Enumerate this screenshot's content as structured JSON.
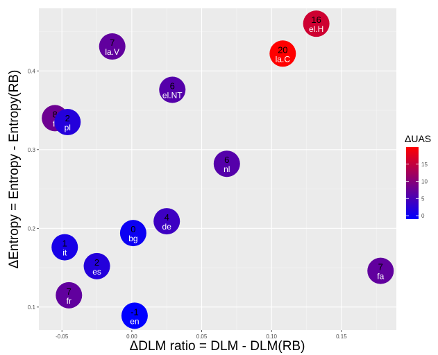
{
  "chart_data": {
    "type": "scatter",
    "xlabel": "ΔDLM ratio = DLM - DLM(RB)",
    "ylabel": "ΔEntropy = Entropy - Entropy(RB)",
    "x_ticks": [
      -0.05,
      0.0,
      0.05,
      0.1,
      0.15
    ],
    "x_tick_labels": [
      "-0.05",
      "0.00",
      "0.05",
      "0.10",
      "0.15"
    ],
    "y_ticks": [
      0.1,
      0.2,
      0.3,
      0.4
    ],
    "y_tick_labels": [
      "0.1",
      "0.2",
      "0.3",
      "0.4"
    ],
    "xlim": [
      -0.0665,
      0.1893
    ],
    "ylim": [
      0.0708,
      0.4795
    ],
    "grid": true,
    "legend": {
      "title": "ΔUAS",
      "placement": "right",
      "ticks": [
        0,
        5,
        10,
        15
      ],
      "tick_labels": [
        "0",
        "5",
        "10",
        "15"
      ],
      "range": [
        -1,
        20
      ],
      "color_low": "#0000ff",
      "color_high": "#ff0000"
    },
    "points": [
      {
        "lang": "el.H",
        "uas": "16",
        "uas_value": 16,
        "x": 0.132,
        "y": 0.46
      },
      {
        "lang": "la.C",
        "uas": "20",
        "uas_value": 20,
        "x": 0.108,
        "y": 0.422
      },
      {
        "lang": "la.V",
        "uas": "7",
        "uas_value": 7,
        "x": -0.014,
        "y": 0.431
      },
      {
        "lang": "el.NT",
        "uas": "6",
        "uas_value": 6,
        "x": 0.029,
        "y": 0.376
      },
      {
        "lang": "fi",
        "uas": "8",
        "uas_value": 8,
        "x": -0.055,
        "y": 0.34
      },
      {
        "lang": "pl",
        "uas": "2",
        "uas_value": 2,
        "x": -0.046,
        "y": 0.335
      },
      {
        "lang": "nl",
        "uas": "6",
        "uas_value": 6,
        "x": 0.068,
        "y": 0.282
      },
      {
        "lang": "de",
        "uas": "4",
        "uas_value": 4,
        "x": 0.025,
        "y": 0.209
      },
      {
        "lang": "bg",
        "uas": "0",
        "uas_value": 0,
        "x": 0.001,
        "y": 0.194
      },
      {
        "lang": "it",
        "uas": "1",
        "uas_value": 1,
        "x": -0.048,
        "y": 0.176
      },
      {
        "lang": "es",
        "uas": "2",
        "uas_value": 2,
        "x": -0.025,
        "y": 0.152
      },
      {
        "lang": "fr",
        "uas": "7",
        "uas_value": 7,
        "x": -0.045,
        "y": 0.115
      },
      {
        "lang": "en",
        "uas": "-1",
        "uas_value": -1,
        "x": 0.002,
        "y": 0.089
      },
      {
        "lang": "fa",
        "uas": "7",
        "uas_value": 7,
        "x": 0.178,
        "y": 0.146
      }
    ]
  }
}
